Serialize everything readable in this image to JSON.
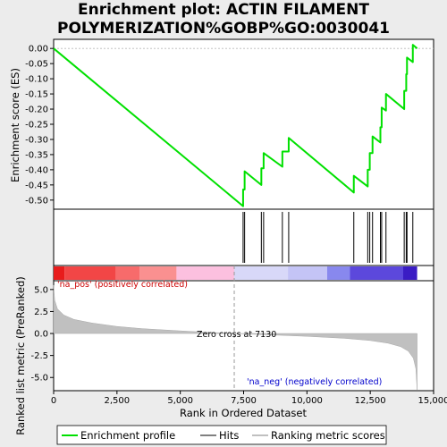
{
  "title_line1": "Enrichment plot: ACTIN FILAMENT",
  "title_line2": "POLYMERIZATION%GOBP%GO:0030041",
  "chart_data": {
    "type": "line",
    "xlabel": "Rank in Ordered Dataset",
    "ylabel_top": "Enrichment score (ES)",
    "ylabel_bottom": "Ranked list metric (PreRanked)",
    "xlim": [
      0,
      15000
    ],
    "x_ticks": [
      0,
      2500,
      5000,
      7500,
      10000,
      12500,
      15000
    ],
    "x_tick_labels": [
      "0",
      "2,500",
      "5,000",
      "7,500",
      "10,000",
      "12,500",
      "15,000"
    ],
    "es_ylim": [
      -0.53,
      0.03
    ],
    "es_ticks": [
      0.0,
      -0.05,
      -0.1,
      -0.15,
      -0.2,
      -0.25,
      -0.3,
      -0.35,
      -0.4,
      -0.45,
      -0.5
    ],
    "es_tick_labels": [
      "0.00",
      "-0.05",
      "-0.10",
      "-0.15",
      "-0.20",
      "-0.25",
      "-0.30",
      "-0.35",
      "-0.40",
      "-0.45",
      "-0.50"
    ],
    "metric_ylim": [
      -6.5,
      6.0
    ],
    "metric_ticks": [
      5.0,
      2.5,
      0.0,
      -2.5,
      -5.0
    ],
    "metric_tick_labels": [
      "5.0",
      "2.5",
      "0.0",
      "-2.5",
      "-5.0"
    ],
    "enrichment_profile": [
      [
        0,
        0.0
      ],
      [
        7480,
        -0.52
      ],
      [
        7480,
        -0.465
      ],
      [
        7540,
        -0.465
      ],
      [
        7540,
        -0.405
      ],
      [
        8200,
        -0.45
      ],
      [
        8200,
        -0.395
      ],
      [
        8290,
        -0.395
      ],
      [
        8290,
        -0.345
      ],
      [
        9030,
        -0.39
      ],
      [
        9030,
        -0.34
      ],
      [
        9280,
        -0.34
      ],
      [
        9280,
        -0.295
      ],
      [
        11850,
        -0.475
      ],
      [
        11850,
        -0.42
      ],
      [
        12400,
        -0.455
      ],
      [
        12400,
        -0.4
      ],
      [
        12480,
        -0.4
      ],
      [
        12480,
        -0.345
      ],
      [
        12590,
        -0.345
      ],
      [
        12590,
        -0.29
      ],
      [
        12900,
        -0.31
      ],
      [
        12900,
        -0.26
      ],
      [
        12950,
        -0.26
      ],
      [
        12950,
        -0.195
      ],
      [
        13120,
        -0.205
      ],
      [
        13120,
        -0.15
      ],
      [
        13840,
        -0.2
      ],
      [
        13840,
        -0.14
      ],
      [
        13920,
        -0.14
      ],
      [
        13920,
        -0.085
      ],
      [
        13950,
        -0.085
      ],
      [
        13950,
        -0.03
      ],
      [
        14180,
        -0.045
      ],
      [
        14180,
        0.012
      ],
      [
        14350,
        0.0
      ]
    ],
    "hits": [
      7480,
      7540,
      8200,
      8290,
      9030,
      9280,
      11850,
      12400,
      12480,
      12590,
      12900,
      12950,
      13120,
      13840,
      13920,
      13950,
      14180
    ],
    "ranked_metric": [
      [
        0,
        5.5
      ],
      [
        40,
        3.8
      ],
      [
        150,
        2.8
      ],
      [
        400,
        2.1
      ],
      [
        800,
        1.6
      ],
      [
        1500,
        1.2
      ],
      [
        2500,
        0.8
      ],
      [
        3500,
        0.55
      ],
      [
        5000,
        0.3
      ],
      [
        6000,
        0.15
      ],
      [
        7130,
        0.0
      ],
      [
        8500,
        -0.15
      ],
      [
        10000,
        -0.32
      ],
      [
        11500,
        -0.55
      ],
      [
        12500,
        -0.8
      ],
      [
        13200,
        -1.1
      ],
      [
        13700,
        -1.5
      ],
      [
        14000,
        -2.0
      ],
      [
        14200,
        -2.8
      ],
      [
        14300,
        -4.0
      ],
      [
        14350,
        -6.4
      ]
    ],
    "heatmap_segments": [
      {
        "start": 0,
        "end": 430,
        "color": "#e81c1c"
      },
      {
        "start": 430,
        "end": 2450,
        "color": "#f24646"
      },
      {
        "start": 2450,
        "end": 3400,
        "color": "#f76b6b"
      },
      {
        "start": 3400,
        "end": 4850,
        "color": "#fa9090"
      },
      {
        "start": 4850,
        "end": 7130,
        "color": "#fcc0df"
      },
      {
        "start": 7130,
        "end": 9250,
        "color": "#d8d8f8"
      },
      {
        "start": 9250,
        "end": 10800,
        "color": "#c4c4f6"
      },
      {
        "start": 10800,
        "end": 11700,
        "color": "#8888ee"
      },
      {
        "start": 11700,
        "end": 13800,
        "color": "#5c48dc"
      },
      {
        "start": 13800,
        "end": 14350,
        "color": "#3a1cc4"
      }
    ],
    "zero_cross_label": "Zero cross at 7130",
    "zero_cross_x": 7130,
    "pos_label": "'na_pos' (positively correlated)",
    "neg_label": "'na_neg' (negatively correlated)",
    "legend": [
      "Enrichment profile",
      "Hits",
      "Ranking metric scores"
    ],
    "colors": {
      "profile": "#00e000",
      "hits": "#000000",
      "metric_fill": "#c0c0c0",
      "pos_text": "#cc0000",
      "neg_text": "#0000cc",
      "zero_line": "#999999"
    }
  }
}
